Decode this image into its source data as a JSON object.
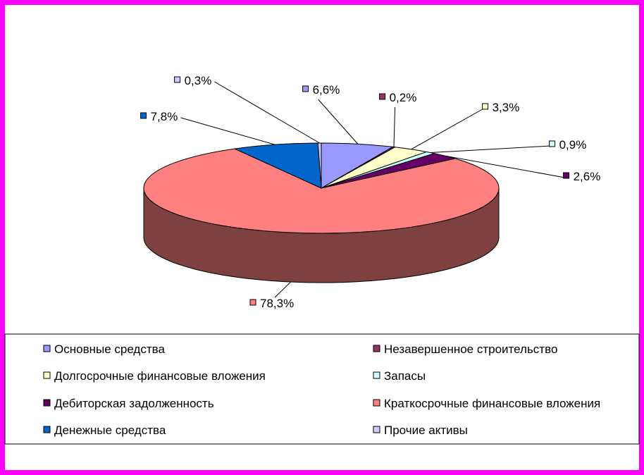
{
  "chart_data": {
    "type": "pie",
    "three_d": true,
    "title": "",
    "categories": [
      "Основные средства",
      "Незавершенное строительство",
      "Долгосрочные финансовые вложения",
      "Запасы",
      "Дебиторская задолженность",
      "Краткосрочные финансовые вложения",
      "Денежные средства",
      "Прочие активы"
    ],
    "values": [
      6.6,
      0.2,
      3.3,
      0.9,
      2.6,
      78.3,
      7.8,
      0.3
    ],
    "labels": [
      "6,6%",
      "0,2%",
      "3,3%",
      "0,9%",
      "2,6%",
      "78,3%",
      "7,8%",
      "0,3%"
    ],
    "colors": [
      "#9999ff",
      "#993366",
      "#ffffcc",
      "#ccffff",
      "#660066",
      "#ff8080",
      "#0066cc",
      "#ccccff"
    ],
    "side_colors": [
      "#6b6bb3",
      "#6b2447",
      "#b3b38f",
      "#8fb3b3",
      "#470047",
      "#7f4040",
      "#00478f",
      "#8f8fb3"
    ],
    "legend_position": "bottom",
    "legend_columns": 2
  }
}
